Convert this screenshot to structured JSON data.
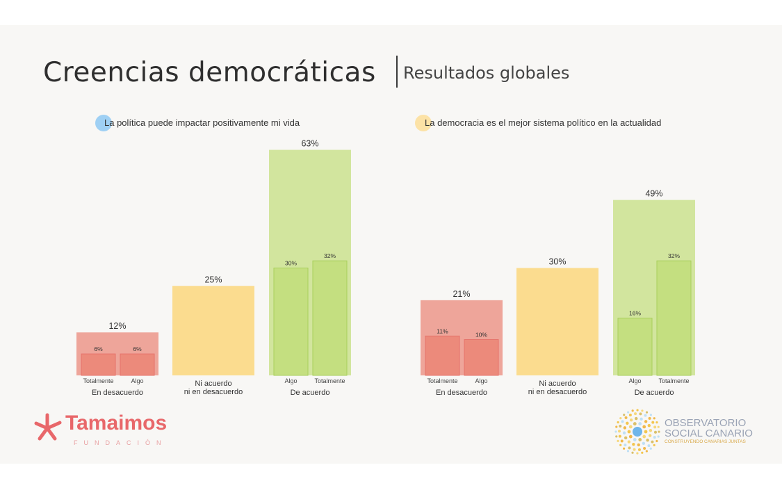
{
  "header": {
    "title": "Creencias democráticas",
    "subtitle": "Resultados globales"
  },
  "colors": {
    "disagree_outer": "#eea59a",
    "disagree_inner": "#ec8a7b",
    "disagree_inner_stroke": "#e6736b",
    "neutral": "#fbdc8f",
    "agree_outer": "#d2e59e",
    "agree_inner": "#c4df80",
    "agree_inner_stroke": "#a8cf5b",
    "dot_blue": "#9fd0f4",
    "dot_yellow": "#fce2a6"
  },
  "chart_data": [
    {
      "type": "bar",
      "title": "La política puede impactar positivamente mi vida",
      "dot_color": "blue",
      "groups": [
        {
          "label": "En desacuerdo",
          "value": 12,
          "value_label": "12%",
          "kind": "disagree",
          "sub": [
            {
              "label": "Totalmente",
              "value": 6,
              "value_label": "6%"
            },
            {
              "label": "Algo",
              "value": 6,
              "value_label": "6%"
            }
          ]
        },
        {
          "label": "Ni acuerdo ni en desacuerdo",
          "label_lines": [
            "Ni acuerdo",
            "ni en desacuerdo"
          ],
          "value": 25,
          "value_label": "25%",
          "kind": "neutral",
          "sub": []
        },
        {
          "label": "De acuerdo",
          "value": 63,
          "value_label": "63%",
          "kind": "agree",
          "sub": [
            {
              "label": "Algo",
              "value": 30,
              "value_label": "30%"
            },
            {
              "label": "Totalmente",
              "value": 32,
              "value_label": "32%"
            }
          ]
        }
      ],
      "ylim": [
        0,
        63
      ]
    },
    {
      "type": "bar",
      "title": "La democracia es el mejor sistema político en la actualidad",
      "dot_color": "yellow",
      "groups": [
        {
          "label": "En desacuerdo",
          "value": 21,
          "value_label": "21%",
          "kind": "disagree",
          "sub": [
            {
              "label": "Totalmente",
              "value": 11,
              "value_label": "11%"
            },
            {
              "label": "Algo",
              "value": 10,
              "value_label": "10%"
            }
          ]
        },
        {
          "label": "Ni acuerdo ni en desacuerdo",
          "label_lines": [
            "Ni acuerdo",
            "ni en desacuerdo"
          ],
          "value": 30,
          "value_label": "30%",
          "kind": "neutral",
          "sub": []
        },
        {
          "label": "De acuerdo",
          "value": 49,
          "value_label": "49%",
          "kind": "agree",
          "sub": [
            {
              "label": "Algo",
              "value": 16,
              "value_label": "16%"
            },
            {
              "label": "Totalmente",
              "value": 32,
              "value_label": "32%"
            }
          ]
        }
      ],
      "ylim": [
        0,
        63
      ]
    }
  ],
  "logos": {
    "left": {
      "name": "Tamaimos",
      "sub": "FUNDACIÓN"
    },
    "right": {
      "line1": "OBSERVATORIO",
      "line2": "SOCIAL CANARIO",
      "line3": "CONSTRUYENDO CANARIAS JUNTAS"
    }
  }
}
